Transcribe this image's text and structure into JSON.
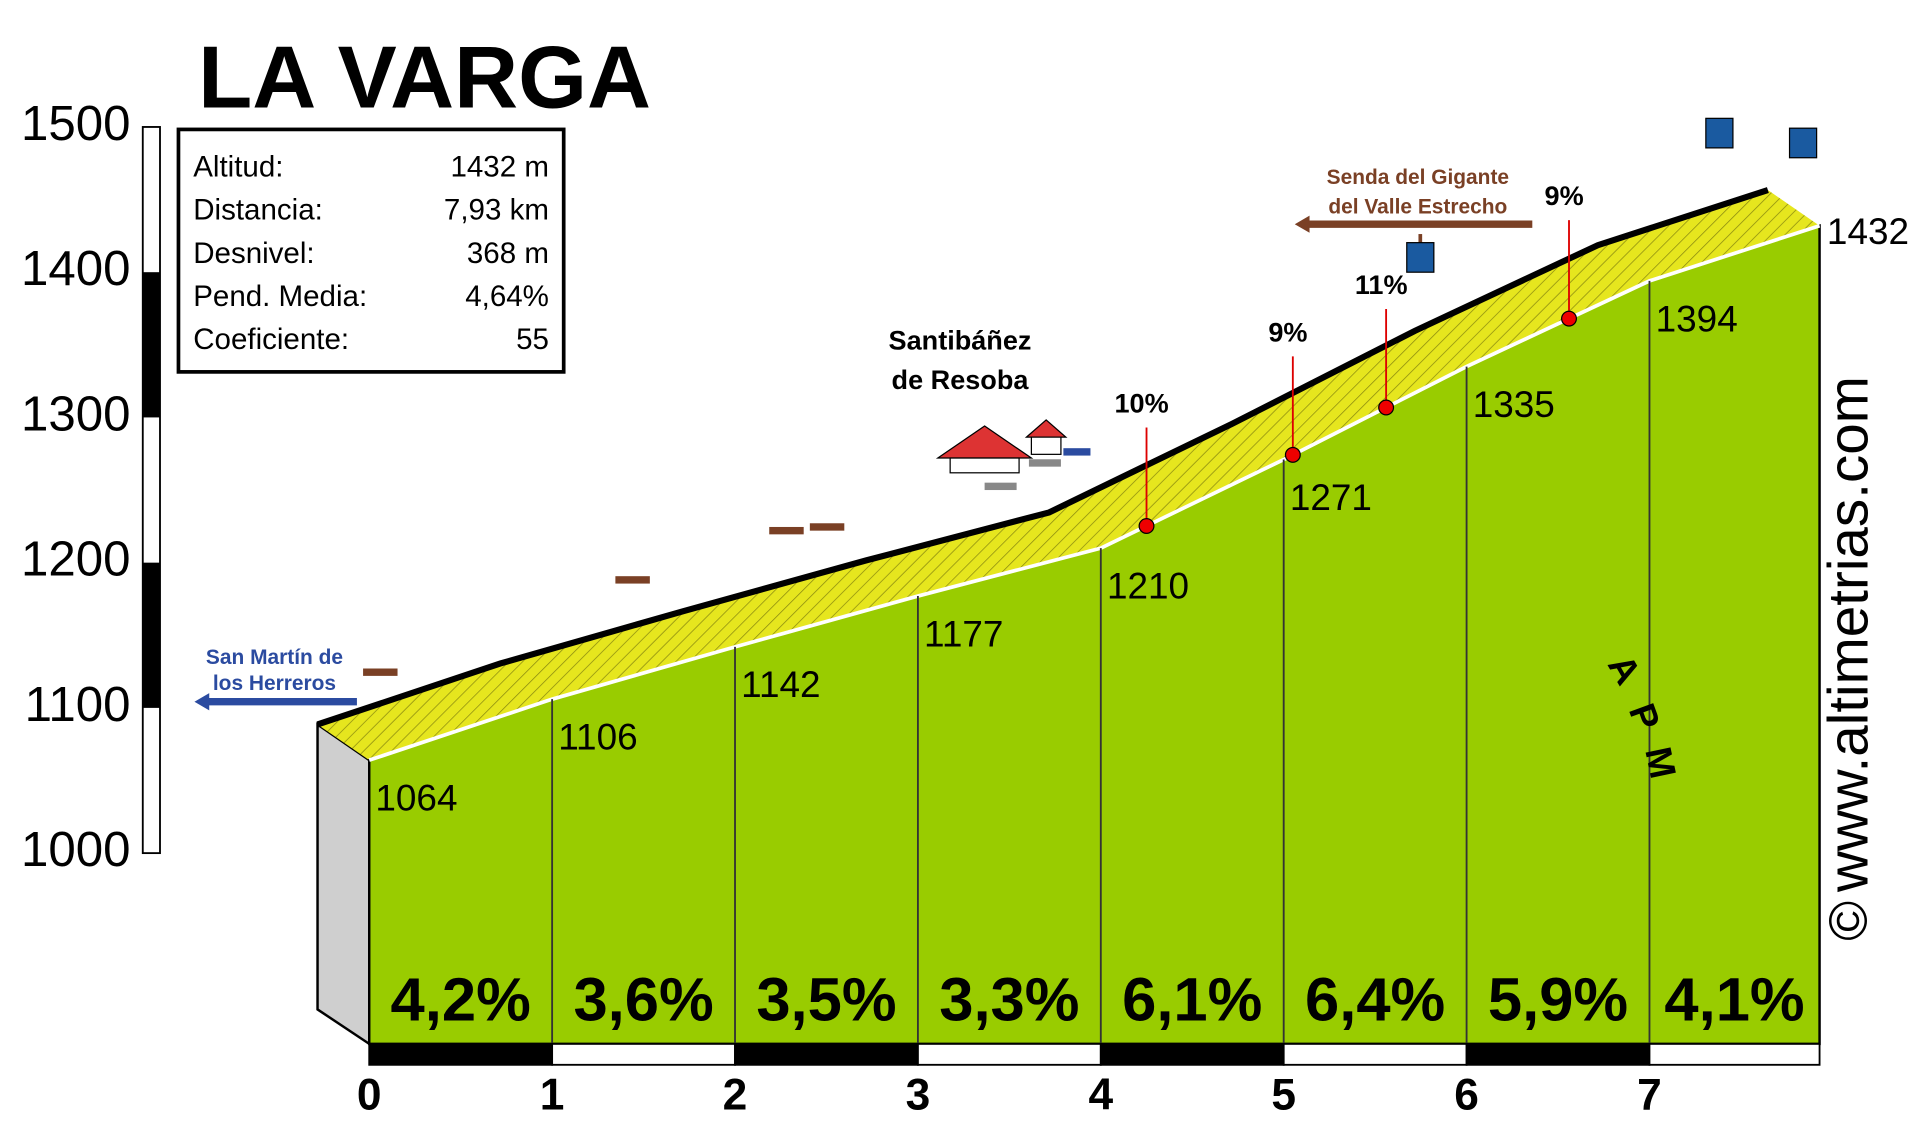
{
  "chart_data": {
    "type": "area",
    "title": "LA VARGA",
    "stats": [
      [
        "Altitud:",
        "1432 m"
      ],
      [
        "Distancia:",
        "7,93 km"
      ],
      [
        "Desnivel:",
        "368 m"
      ],
      [
        "Pend. Media:",
        "4,64%"
      ],
      [
        "Coeficiente:",
        "55"
      ]
    ],
    "x": [
      0,
      1,
      2,
      3,
      4,
      5,
      6,
      7,
      7.93
    ],
    "values": [
      1064,
      1106,
      1142,
      1177,
      1210,
      1271,
      1335,
      1394,
      1432
    ],
    "segments": {
      "values": [
        4.2,
        3.6,
        3.5,
        3.3,
        6.1,
        6.4,
        5.9,
        4.1
      ],
      "value_labels": [
        "4,2%",
        "3,6%",
        "3,5%",
        "3,3%",
        "6,1%",
        "6,4%",
        "5,9%",
        "4,1%"
      ]
    },
    "xlim": [
      0,
      7.93
    ],
    "xticks": [
      0,
      1,
      2,
      3,
      4,
      5,
      6,
      7
    ],
    "ylim": [
      1000,
      1500
    ],
    "yticks": [
      1000,
      1100,
      1200,
      1300,
      1400,
      1500
    ],
    "color": "#99cc00",
    "top_color": "#e6e61e",
    "annotations": [
      {
        "x": 4.25,
        "label": "10%"
      },
      {
        "x": 5.05,
        "label": "9%"
      },
      {
        "x": 5.56,
        "label": "11%"
      },
      {
        "x": 6.56,
        "label": "9%"
      }
    ],
    "places": [
      [
        "Santibáñez",
        "de Resoba"
      ],
      [
        "San Martín de",
        "los Herreros"
      ],
      [
        "Senda del Gigante",
        "del Valle Estrecho"
      ]
    ],
    "logo": [
      "A",
      "P",
      "M"
    ],
    "credit": "www.altimetrias.com",
    "copyright": "©"
  }
}
